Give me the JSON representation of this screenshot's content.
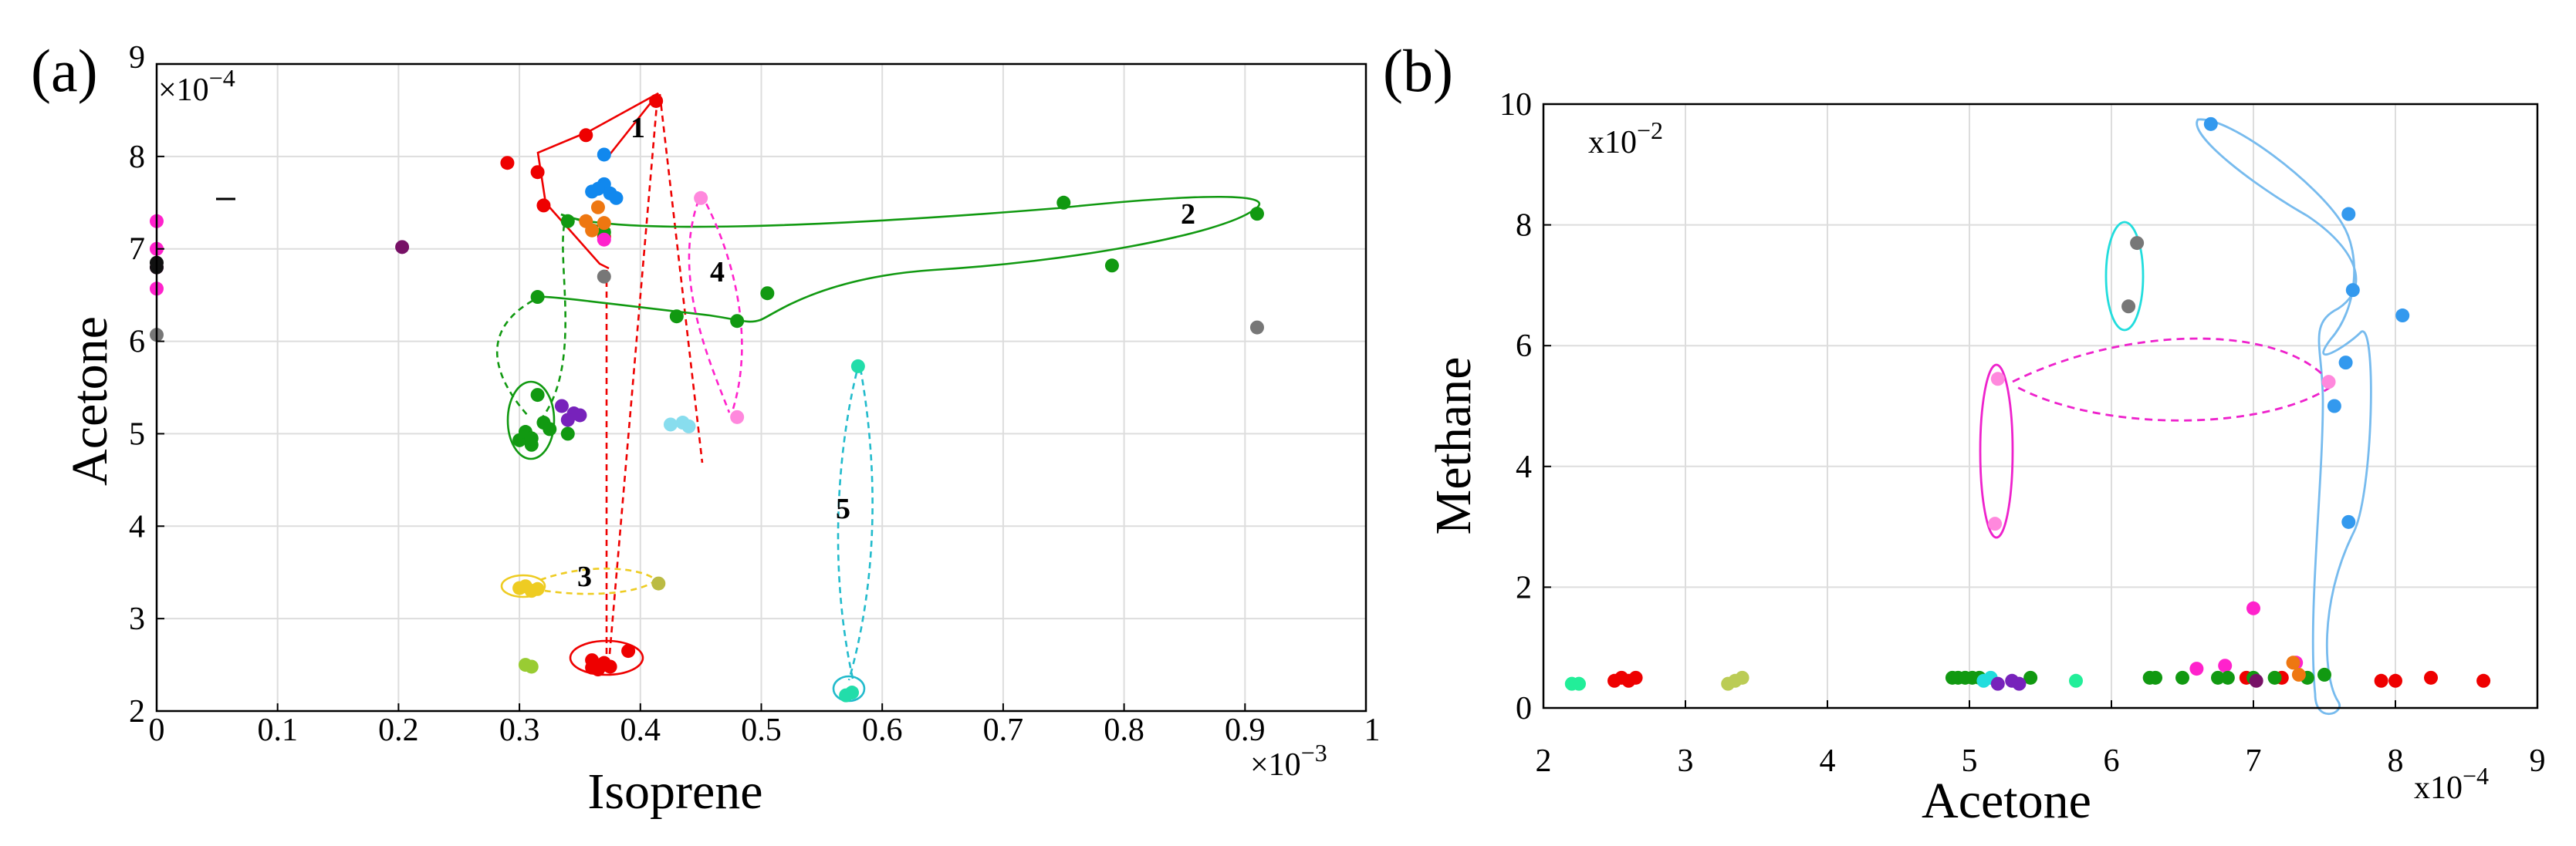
{
  "chart_data": [
    {
      "type": "scatter",
      "panel_label": "(a)",
      "xlabel": "Isoprene",
      "ylabel": "Acetone",
      "x_multiplier": "×10",
      "x_multiplier_exp": "−3",
      "y_multiplier": "×10",
      "y_multiplier_exp": "−4",
      "xlim": [
        0,
        1
      ],
      "ylim": [
        2,
        9
      ],
      "xticks": [
        0,
        0.1,
        0.2,
        0.3,
        0.4,
        0.5,
        0.6,
        0.7,
        0.8,
        0.9
      ],
      "xtick_labels": [
        "0",
        "0.1",
        "0.2",
        "0.3",
        "0.4",
        "0.5",
        "0.6",
        "0.7",
        "0.8",
        "0.9"
      ],
      "xtick_end_label": "1",
      "yticks": [
        2,
        3,
        4,
        5,
        6,
        7,
        8
      ],
      "ytick_labels": [
        "2",
        "3",
        "4",
        "5",
        "6",
        "7",
        "8"
      ],
      "ytick_end_label": "9",
      "grid": true,
      "series": [
        {
          "name": "red",
          "color": "#ee0000",
          "x": [
            0.29,
            0.315,
            0.355,
            0.413,
            0.32,
            0.37,
            0.36,
            0.37,
            0.36,
            0.365,
            0.37,
            0.375,
            0.39
          ],
          "y": [
            7.93,
            7.83,
            8.23,
            8.6,
            7.47,
            7.13,
            2.47,
            2.5,
            2.55,
            2.45,
            2.52,
            2.48,
            2.65
          ]
        },
        {
          "name": "green",
          "color": "#119911",
          "x": [
            0.315,
            0.43,
            0.48,
            0.505,
            0.75,
            0.79,
            0.91,
            0.34,
            0.37,
            0.3,
            0.305,
            0.31,
            0.32,
            0.325,
            0.315,
            0.31,
            0.34
          ],
          "y": [
            6.48,
            6.27,
            6.22,
            6.52,
            7.5,
            6.82,
            7.38,
            7.3,
            7.18,
            4.93,
            5.02,
            4.88,
            5.12,
            5.05,
            5.42,
            4.95,
            5.0
          ]
        },
        {
          "name": "blue",
          "color": "#1188ee",
          "x": [
            0.36,
            0.37,
            0.375,
            0.38,
            0.365,
            0.37
          ],
          "y": [
            7.62,
            7.7,
            7.6,
            7.55,
            7.65,
            8.02
          ]
        },
        {
          "name": "orange",
          "color": "#ee7711",
          "x": [
            0.355,
            0.365,
            0.36,
            0.37
          ],
          "y": [
            7.3,
            7.45,
            7.2,
            7.28
          ]
        },
        {
          "name": "magenta",
          "color": "#ff22cc",
          "x": [
            0,
            0,
            0,
            0,
            0.37
          ],
          "y": [
            7.3,
            7.0,
            6.8,
            6.57,
            7.1
          ]
        },
        {
          "name": "pink",
          "color": "#ff88dd",
          "x": [
            0.45,
            0.48
          ],
          "y": [
            7.55,
            5.18
          ]
        },
        {
          "name": "purple",
          "color": "#7722bb",
          "x": [
            0.335,
            0.345,
            0.34,
            0.35
          ],
          "y": [
            5.3,
            5.22,
            5.15,
            5.2
          ]
        },
        {
          "name": "lightcyan",
          "color": "#88ddee",
          "x": [
            0.425,
            0.435,
            0.44
          ],
          "y": [
            5.1,
            5.12,
            5.08
          ]
        },
        {
          "name": "darkpurple",
          "color": "#771166",
          "x": [
            0.203
          ],
          "y": [
            7.02
          ]
        },
        {
          "name": "gray",
          "color": "#777777",
          "x": [
            0,
            0.91,
            0.37
          ],
          "y": [
            6.07,
            6.15,
            6.7
          ]
        },
        {
          "name": "black",
          "color": "#111111",
          "x": [
            0,
            0
          ],
          "y": [
            6.8,
            6.85
          ]
        },
        {
          "name": "yellow",
          "color": "#eecc22",
          "x": [
            0.3,
            0.31,
            0.305,
            0.315
          ],
          "y": [
            3.33,
            3.3,
            3.35,
            3.32
          ]
        },
        {
          "name": "olive",
          "color": "#bbbb44",
          "x": [
            0.415
          ],
          "y": [
            3.38
          ]
        },
        {
          "name": "yellowgreen",
          "color": "#99cc33",
          "x": [
            0.305,
            0.31
          ],
          "y": [
            2.5,
            2.48
          ]
        },
        {
          "name": "aquamarine",
          "color": "#22ddaa",
          "x": [
            0.58,
            0.575,
            0.57
          ],
          "y": [
            5.73,
            2.2,
            2.17
          ]
        }
      ],
      "annotations": [
        "1",
        "2",
        "3",
        "4",
        "5"
      ]
    },
    {
      "type": "scatter",
      "panel_label": "(b)",
      "xlabel": "Acetone",
      "ylabel": "Methane",
      "x_multiplier": "x10",
      "x_multiplier_exp": "−4",
      "y_multiplier": "x10",
      "y_multiplier_exp": "−2",
      "xlim": [
        2,
        9
      ],
      "ylim": [
        0,
        10
      ],
      "xticks": [
        2,
        3,
        4,
        5,
        6,
        7,
        8,
        9
      ],
      "xtick_labels": [
        "2",
        "3",
        "4",
        "5",
        "6",
        "7",
        "8",
        "9"
      ],
      "yticks": [
        0,
        2,
        4,
        6,
        8,
        10
      ],
      "ytick_labels": [
        "0",
        "2",
        "4",
        "6",
        "8",
        "10"
      ],
      "grid": true,
      "series": [
        {
          "name": "blue",
          "color": "#3399ee",
          "x": [
            6.7,
            7.67,
            7.7,
            8.05,
            7.65,
            7.57,
            7.67
          ],
          "y": [
            9.67,
            8.18,
            6.92,
            6.5,
            5.72,
            5.0,
            3.08
          ]
        },
        {
          "name": "gray",
          "color": "#777777",
          "x": [
            6.18,
            6.12
          ],
          "y": [
            7.7,
            6.65
          ]
        },
        {
          "name": "magenta",
          "color": "#ff22cc",
          "x": [
            7.0,
            7.3,
            6.6,
            6.8
          ],
          "y": [
            1.65,
            0.75,
            0.65,
            0.7
          ]
        },
        {
          "name": "pink",
          "color": "#ff88dd",
          "x": [
            5.2,
            5.18,
            7.53
          ],
          "y": [
            5.45,
            3.05,
            5.4
          ]
        },
        {
          "name": "red",
          "color": "#ee0000",
          "x": [
            2.5,
            2.55,
            2.6,
            2.65,
            7.9,
            8.0,
            8.25,
            8.62,
            6.95,
            7.2
          ],
          "y": [
            0.45,
            0.5,
            0.45,
            0.5,
            0.45,
            0.45,
            0.5,
            0.45,
            0.5,
            0.5
          ]
        },
        {
          "name": "green",
          "color": "#119911",
          "x": [
            4.88,
            4.92,
            4.97,
            5.02,
            5.07,
            5.43,
            6.27,
            6.31,
            6.5,
            6.75,
            6.82,
            7.15,
            7.38,
            7.5,
            7.0
          ],
          "y": [
            0.5,
            0.5,
            0.5,
            0.5,
            0.5,
            0.5,
            0.5,
            0.5,
            0.5,
            0.5,
            0.5,
            0.5,
            0.5,
            0.55,
            0.5
          ]
        },
        {
          "name": "aquamarine",
          "color": "#22ee99",
          "x": [
            2.2,
            2.25,
            5.75
          ],
          "y": [
            0.4,
            0.4,
            0.45
          ]
        },
        {
          "name": "cyan",
          "color": "#22dddd",
          "x": [
            5.1,
            5.15
          ],
          "y": [
            0.45,
            0.5
          ]
        },
        {
          "name": "yellowgreen",
          "color": "#bbcc55",
          "x": [
            3.3,
            3.35,
            3.4
          ],
          "y": [
            0.4,
            0.45,
            0.5
          ]
        },
        {
          "name": "purple",
          "color": "#7722bb",
          "x": [
            5.2,
            5.3,
            5.35
          ],
          "y": [
            0.4,
            0.45,
            0.4
          ]
        },
        {
          "name": "darkpurple",
          "color": "#771166",
          "x": [
            7.02
          ],
          "y": [
            0.45
          ]
        },
        {
          "name": "orange",
          "color": "#ee7711",
          "x": [
            7.28,
            7.32
          ],
          "y": [
            0.75,
            0.55
          ]
        }
      ]
    }
  ]
}
